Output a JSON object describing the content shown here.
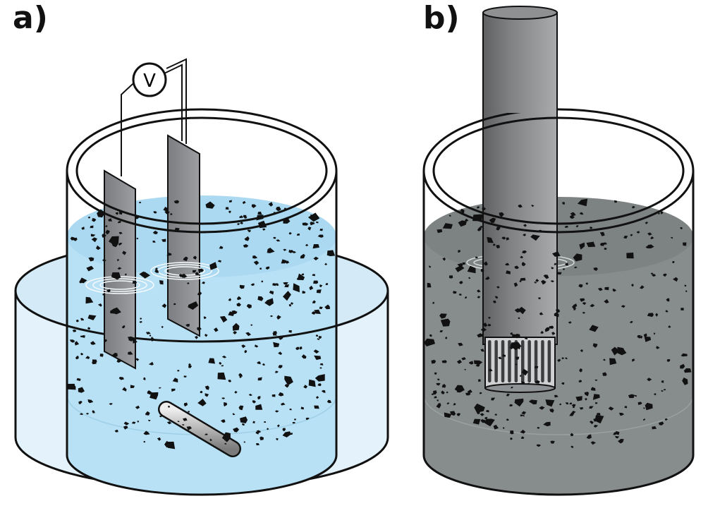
{
  "panels": [
    {
      "label": "a)"
    },
    {
      "label": "b)"
    }
  ],
  "meter_symbol": "V",
  "colors": {
    "liquid_blue": "#b8e0f4",
    "liquid_blue_outer": "#e2f2fb",
    "liquid_gray": "#878c8c",
    "electrode": "#8a8c8e",
    "particle": "#111111",
    "outline": "#111111"
  },
  "icons": {
    "a": [
      "double-wall-beaker-icon",
      "electrode-plate-icon",
      "voltmeter-icon",
      "stir-bar-icon",
      "particle-icon",
      "ultrasound-wave-icon"
    ],
    "b": [
      "beaker-icon",
      "sonotrode-probe-icon",
      "slotted-tip-icon",
      "particle-icon",
      "ultrasound-wave-icon"
    ]
  }
}
